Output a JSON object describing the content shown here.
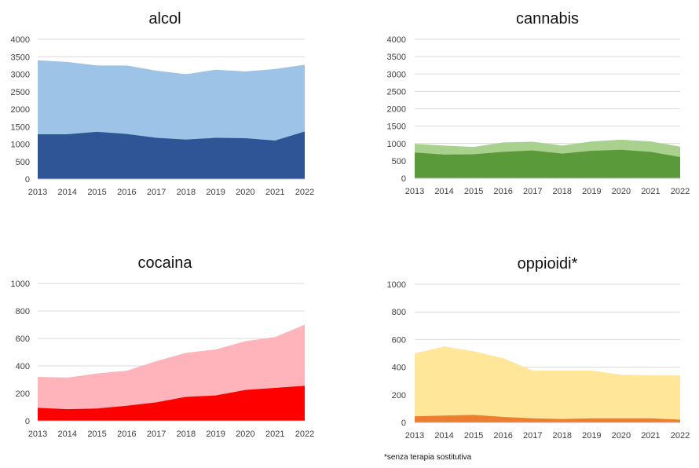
{
  "chart_data": [
    {
      "type": "area",
      "title": "alcol",
      "x": [
        "2013",
        "2014",
        "2015",
        "2016",
        "2017",
        "2018",
        "2019",
        "2020",
        "2021",
        "2022"
      ],
      "ylim": [
        0,
        4000
      ],
      "yticks": [
        0,
        500,
        1000,
        1500,
        2000,
        2500,
        3000,
        3500,
        4000
      ],
      "grid": true,
      "series": [
        {
          "color": "#9dc3e6",
          "values": [
            3400,
            3350,
            3250,
            3250,
            3100,
            3000,
            3130,
            3080,
            3150,
            3270
          ]
        },
        {
          "color": "#2f5597",
          "values": [
            1280,
            1280,
            1350,
            1290,
            1180,
            1130,
            1180,
            1170,
            1100,
            1360
          ]
        }
      ]
    },
    {
      "type": "area",
      "title": "cannabis",
      "x": [
        "2013",
        "2014",
        "2015",
        "2016",
        "2017",
        "2018",
        "2019",
        "2020",
        "2021",
        "2022"
      ],
      "ylim": [
        0,
        4000
      ],
      "yticks": [
        0,
        500,
        1000,
        1500,
        2000,
        2500,
        3000,
        3500,
        4000
      ],
      "grid": true,
      "series": [
        {
          "color": "#a9d18e",
          "values": [
            990,
            940,
            900,
            1030,
            1050,
            940,
            1060,
            1110,
            1060,
            910
          ]
        },
        {
          "color": "#5a9a3a",
          "values": [
            740,
            680,
            690,
            760,
            800,
            710,
            790,
            820,
            760,
            610
          ]
        }
      ]
    },
    {
      "type": "area",
      "title": "cocaina",
      "x": [
        "2013",
        "2014",
        "2015",
        "2016",
        "2017",
        "2018",
        "2019",
        "2020",
        "2021",
        "2022"
      ],
      "ylim": [
        0,
        1000
      ],
      "yticks": [
        0,
        200,
        400,
        600,
        800,
        1000
      ],
      "grid": true,
      "series": [
        {
          "color": "#ffb3ba",
          "values": [
            320,
            315,
            345,
            365,
            435,
            495,
            520,
            580,
            610,
            700
          ]
        },
        {
          "color": "#ff0000",
          "values": [
            95,
            85,
            90,
            110,
            135,
            175,
            185,
            225,
            240,
            255
          ]
        }
      ]
    },
    {
      "type": "area",
      "title": "oppioidi*",
      "x": [
        "2013",
        "2014",
        "2015",
        "2016",
        "2017",
        "2018",
        "2019",
        "2020",
        "2021",
        "2022"
      ],
      "ylim": [
        0,
        1000
      ],
      "yticks": [
        0,
        200,
        400,
        600,
        800,
        1000
      ],
      "grid": true,
      "series": [
        {
          "color": "#ffe699",
          "values": [
            500,
            550,
            515,
            465,
            375,
            375,
            375,
            345,
            340,
            340
          ]
        },
        {
          "color": "#ed7d31",
          "values": [
            45,
            50,
            55,
            40,
            30,
            25,
            30,
            30,
            30,
            20
          ]
        }
      ]
    }
  ],
  "footnote": "*senza terapia sostitutiva"
}
